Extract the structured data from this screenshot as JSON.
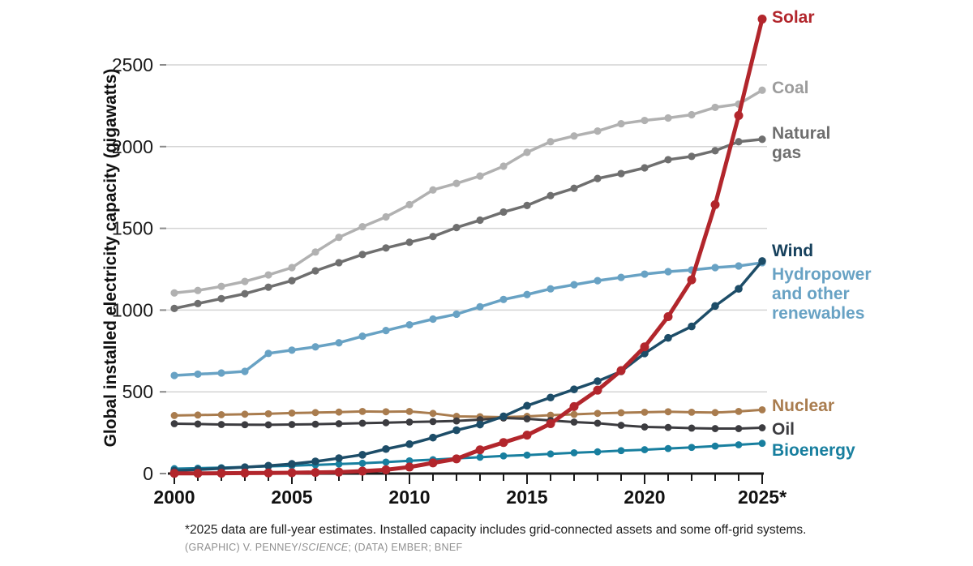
{
  "chart_data": {
    "type": "line",
    "ylabel": "Global installed electricity capacity (gigawatts)",
    "footnote": "*2025 data are full-year estimates. Installed capacity includes grid-connected assets and some off-grid systems.",
    "credit_prefix": "(GRAPHIC) V. PENNEY/",
    "credit_italic": "SCIENCE",
    "credit_suffix": "; (DATA) EMBER; BNEF",
    "grid": "horizontal",
    "legend_position": "right-edge-labels",
    "x_range": [
      2000,
      2025
    ],
    "ylim": [
      0,
      2800
    ],
    "y_ticks": [
      0,
      500,
      1000,
      1500,
      2000,
      2500
    ],
    "x_ticks": [
      "2000",
      "2005",
      "2010",
      "2015",
      "2020",
      "2025*"
    ],
    "years": [
      2000,
      2001,
      2002,
      2003,
      2004,
      2005,
      2006,
      2007,
      2008,
      2009,
      2010,
      2011,
      2012,
      2013,
      2014,
      2015,
      2016,
      2017,
      2018,
      2019,
      2020,
      2021,
      2022,
      2023,
      2024,
      2025
    ],
    "series": [
      {
        "id": "solar",
        "name": "Solar",
        "color": "#b2262c",
        "label_lines": [
          "Solar"
        ],
        "values": [
          1,
          1,
          2,
          3,
          4,
          5,
          7,
          9,
          15,
          23,
          40,
          65,
          90,
          145,
          190,
          235,
          305,
          410,
          510,
          630,
          775,
          960,
          1185,
          1645,
          2190,
          2780
        ]
      },
      {
        "id": "coal",
        "name": "Coal",
        "color": "#b1b1b1",
        "label_color": "#9c9c9c",
        "label_lines": [
          "Coal"
        ],
        "values": [
          1105,
          1120,
          1145,
          1175,
          1215,
          1260,
          1355,
          1445,
          1510,
          1570,
          1645,
          1735,
          1775,
          1820,
          1880,
          1965,
          2030,
          2065,
          2095,
          2140,
          2160,
          2175,
          2195,
          2240,
          2260,
          2345
        ]
      },
      {
        "id": "natural-gas",
        "name": "Natural gas",
        "color": "#6f6f6f",
        "label_lines": [
          "Natural",
          "gas"
        ],
        "values": [
          1010,
          1040,
          1070,
          1100,
          1140,
          1180,
          1240,
          1290,
          1340,
          1380,
          1415,
          1450,
          1505,
          1550,
          1600,
          1640,
          1700,
          1745,
          1805,
          1835,
          1870,
          1920,
          1940,
          1975,
          2030,
          2045
        ]
      },
      {
        "id": "wind",
        "name": "Wind",
        "color": "#1d4d68",
        "label_color": "#16405c",
        "label_lines": [
          "Wind"
        ],
        "values": [
          18,
          24,
          31,
          39,
          48,
          59,
          74,
          94,
          115,
          150,
          180,
          220,
          265,
          300,
          350,
          415,
          465,
          515,
          565,
          625,
          735,
          830,
          900,
          1025,
          1130,
          1300
        ]
      },
      {
        "id": "hydropower",
        "name": "Hydropower and other renewables",
        "color": "#68a2c4",
        "label_lines": [
          "Hydropower",
          "and other",
          "renewables"
        ],
        "values": [
          600,
          608,
          615,
          625,
          735,
          755,
          775,
          800,
          840,
          875,
          910,
          945,
          975,
          1020,
          1065,
          1095,
          1130,
          1155,
          1180,
          1200,
          1220,
          1235,
          1245,
          1260,
          1270,
          1290
        ]
      },
      {
        "id": "nuclear",
        "name": "Nuclear",
        "color": "#a97c4e",
        "label_lines": [
          "Nuclear"
        ],
        "values": [
          355,
          358,
          360,
          363,
          366,
          370,
          373,
          376,
          380,
          378,
          380,
          368,
          350,
          348,
          345,
          350,
          357,
          362,
          368,
          372,
          375,
          378,
          375,
          373,
          380,
          390
        ]
      },
      {
        "id": "oil",
        "name": "Oil",
        "color": "#3c3c40",
        "label_lines": [
          "Oil"
        ],
        "values": [
          305,
          303,
          300,
          299,
          298,
          300,
          302,
          305,
          308,
          311,
          315,
          318,
          322,
          330,
          340,
          335,
          325,
          315,
          308,
          295,
          285,
          282,
          278,
          275,
          275,
          280
        ]
      },
      {
        "id": "bioenergy",
        "name": "Bioenergy",
        "color": "#187f9f",
        "label_lines": [
          "Bioenergy"
        ],
        "values": [
          30,
          33,
          36,
          40,
          44,
          48,
          53,
          58,
          63,
          70,
          78,
          85,
          93,
          100,
          108,
          113,
          120,
          127,
          133,
          140,
          146,
          153,
          160,
          168,
          176,
          185
        ]
      }
    ]
  }
}
